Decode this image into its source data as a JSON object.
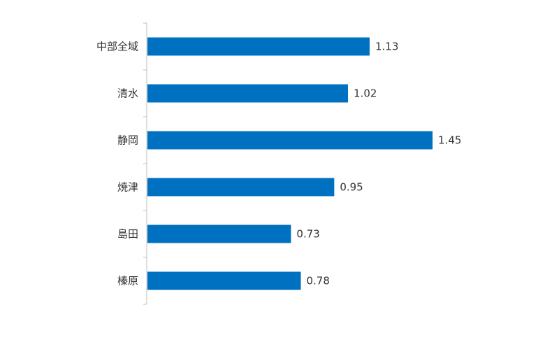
{
  "chart_data": {
    "type": "bar",
    "orientation": "horizontal",
    "categories": [
      "中部全域",
      "清水",
      "静岡",
      "焼津",
      "島田",
      "榛原"
    ],
    "values": [
      1.13,
      1.02,
      1.45,
      0.95,
      0.73,
      0.78
    ],
    "value_labels": [
      "1.13",
      "1.02",
      "1.45",
      "0.95",
      "0.73",
      "0.78"
    ],
    "xlim": [
      0,
      1.5
    ],
    "grid": false,
    "legend": "none",
    "bar_color": "#0070c0",
    "axis_color": "#bfbfbf",
    "text_color": "#333333"
  }
}
